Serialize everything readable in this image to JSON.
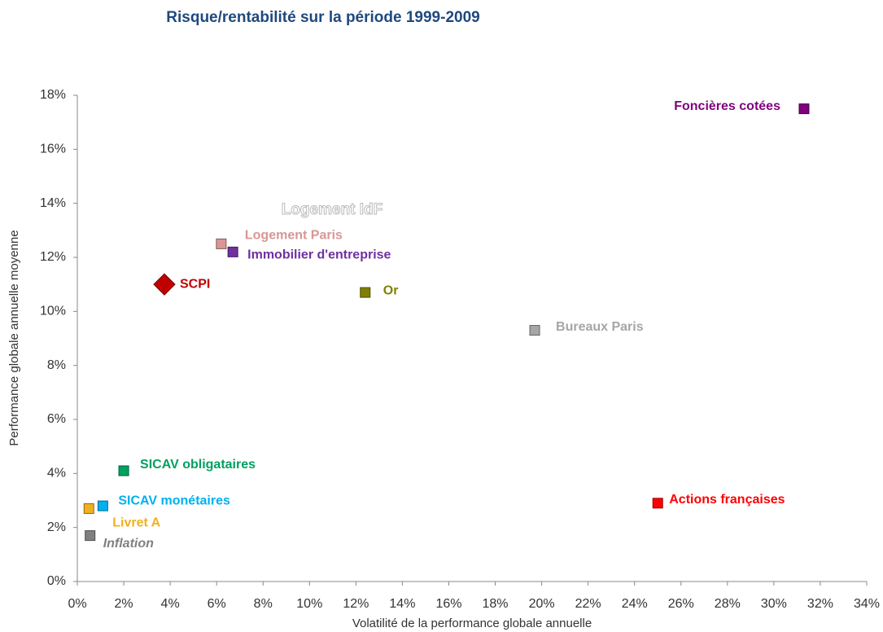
{
  "chart_data": {
    "type": "scatter",
    "title": "Risque/rentabilité sur la période 1999-2009",
    "x_label": "Volatilité de la performance globale annuelle",
    "y_label": "Performance globale annuelle moyenne",
    "annotations": [
      "Logement IdF"
    ],
    "xlim": [
      0,
      34
    ],
    "ylim": [
      0,
      18
    ],
    "xticks": [
      {
        "value": 0,
        "label": "0%"
      },
      {
        "value": 2,
        "label": "2%"
      },
      {
        "value": 4,
        "label": "4%"
      },
      {
        "value": 6,
        "label": "6%"
      },
      {
        "value": 8,
        "label": "8%"
      },
      {
        "value": 10,
        "label": "10%"
      },
      {
        "value": 12,
        "label": "12%"
      },
      {
        "value": 14,
        "label": "14%"
      },
      {
        "value": 16,
        "label": "16%"
      },
      {
        "value": 18,
        "label": "18%"
      },
      {
        "value": 20,
        "label": "20%"
      },
      {
        "value": 22,
        "label": "22%"
      },
      {
        "value": 24,
        "label": "24%"
      },
      {
        "value": 26,
        "label": "26%"
      },
      {
        "value": 28,
        "label": "28%"
      },
      {
        "value": 30,
        "label": "30%"
      },
      {
        "value": 32,
        "label": "32%"
      },
      {
        "value": 34,
        "label": "34%"
      }
    ],
    "yticks": [
      {
        "value": 0,
        "label": "0%"
      },
      {
        "value": 2,
        "label": "2%"
      },
      {
        "value": 4,
        "label": "4%"
      },
      {
        "value": 6,
        "label": "6%"
      },
      {
        "value": 8,
        "label": "8%"
      },
      {
        "value": 10,
        "label": "10%"
      },
      {
        "value": 12,
        "label": "12%"
      },
      {
        "value": 14,
        "label": "14%"
      },
      {
        "value": 16,
        "label": "16%"
      },
      {
        "value": 18,
        "label": "18%"
      }
    ],
    "series": [
      {
        "name": "Foncières cotées",
        "color": "#7f007f",
        "marker": "square",
        "x": [
          31.3
        ],
        "values": [
          17.5
        ]
      },
      {
        "name": "Logement Paris",
        "color": "#d99694",
        "marker": "square",
        "x": [
          6.2
        ],
        "values": [
          12.5
        ]
      },
      {
        "name": "Immobilier d'entreprise",
        "color": "#7030a0",
        "marker": "square",
        "x": [
          6.7
        ],
        "values": [
          12.2
        ]
      },
      {
        "name": "SCPI",
        "color": "#c00000",
        "marker": "diamond",
        "x": [
          3.75
        ],
        "values": [
          11.0
        ]
      },
      {
        "name": "Or",
        "color": "#808000",
        "marker": "square",
        "x": [
          12.4
        ],
        "values": [
          10.7
        ]
      },
      {
        "name": "Bureaux Paris",
        "color": "#a6a6a6",
        "marker": "square",
        "x": [
          19.7
        ],
        "values": [
          9.3
        ]
      },
      {
        "name": "SICAV obligataires",
        "color": "#00a060",
        "marker": "square",
        "x": [
          2.0
        ],
        "values": [
          4.1
        ]
      },
      {
        "name": "SICAV monétaires",
        "color": "#00b0f0",
        "marker": "square",
        "x": [
          1.1
        ],
        "values": [
          2.8
        ]
      },
      {
        "name": "Livret A",
        "color": "#f0b020",
        "marker": "square",
        "x": [
          0.5
        ],
        "values": [
          2.7
        ]
      },
      {
        "name": "Inflation",
        "color": "#808080",
        "marker": "square",
        "x": [
          0.55
        ],
        "values": [
          1.7
        ]
      },
      {
        "name": "Actions françaises",
        "color": "#ff0000",
        "marker": "square",
        "x": [
          25.0
        ],
        "values": [
          2.9
        ]
      }
    ]
  }
}
